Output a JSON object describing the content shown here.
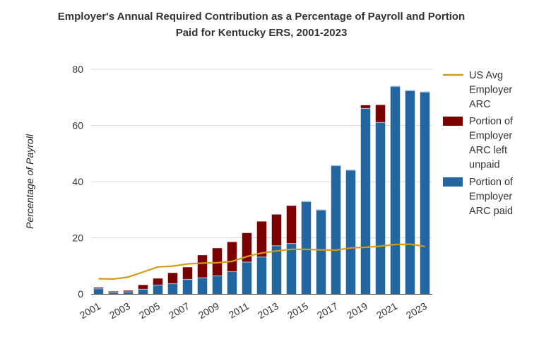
{
  "chart_data": {
    "type": "bar",
    "title_lines": [
      "Employer's Annual Required Contribution as a Percentage of Payroll and Portion",
      "Paid for Kentucky ERS, 2001-2023"
    ],
    "ylabel": "Percentage of Payroll",
    "xlabel": "",
    "ylim": [
      0,
      80
    ],
    "yticks": [
      0,
      20,
      40,
      60,
      80
    ],
    "xtick_labels": [
      "2001",
      "2003",
      "2005",
      "2007",
      "2009",
      "2011",
      "2013",
      "2015",
      "2017",
      "2019",
      "2021",
      "2023"
    ],
    "categories": [
      "2001",
      "2002",
      "2003",
      "2004",
      "2005",
      "2006",
      "2007",
      "2008",
      "2009",
      "2010",
      "2011",
      "2012",
      "2013",
      "2014",
      "2015",
      "2016",
      "2017",
      "2018",
      "2019",
      "2020",
      "2021",
      "2022",
      "2023"
    ],
    "stacked": true,
    "grid": true,
    "legend_position": "right",
    "series": [
      {
        "name": "Portion of Employer ARC paid",
        "type": "bar",
        "color": "#2166a0",
        "values": [
          2.0,
          0.7,
          0.9,
          1.8,
          3.3,
          3.8,
          5.3,
          5.9,
          6.6,
          8.1,
          11.5,
          13.3,
          17.3,
          18.1,
          33.0,
          30.0,
          45.8,
          44.2,
          66.2,
          61.2,
          74.0,
          72.5,
          72.0
        ]
      },
      {
        "name": "Portion of Employer ARC left unpaid",
        "type": "bar",
        "color": "#7b0000",
        "values": [
          0.3,
          0.2,
          0.3,
          1.4,
          2.2,
          3.7,
          4.2,
          7.9,
          9.7,
          10.4,
          10.2,
          12.5,
          11.0,
          13.3,
          0.0,
          0.0,
          0.0,
          0.0,
          1.0,
          6.1,
          0.0,
          0.0,
          0.0
        ]
      },
      {
        "name": "US Avg Employer ARC",
        "type": "line",
        "color": "#d69b16",
        "values": [
          5.4,
          5.3,
          6.0,
          7.8,
          9.6,
          9.9,
          10.7,
          11.0,
          11.1,
          11.6,
          13.3,
          14.6,
          15.3,
          15.9,
          15.9,
          15.7,
          15.6,
          16.4,
          16.6,
          17.0,
          17.6,
          17.7,
          16.9
        ]
      }
    ],
    "legend_order": [
      "US Avg Employer ARC",
      "Portion of Employer ARC left unpaid",
      "Portion of Employer ARC paid"
    ],
    "legend_lines": [
      [
        "US Avg",
        "Employer",
        "ARC"
      ],
      [
        "Portion of",
        "Employer",
        "ARC left",
        "unpaid"
      ],
      [
        "Portion of",
        "Employer",
        "ARC paid"
      ]
    ],
    "colors": {
      "axis": "#333333",
      "grid": "#d9d9d9",
      "text": "#333333"
    }
  }
}
